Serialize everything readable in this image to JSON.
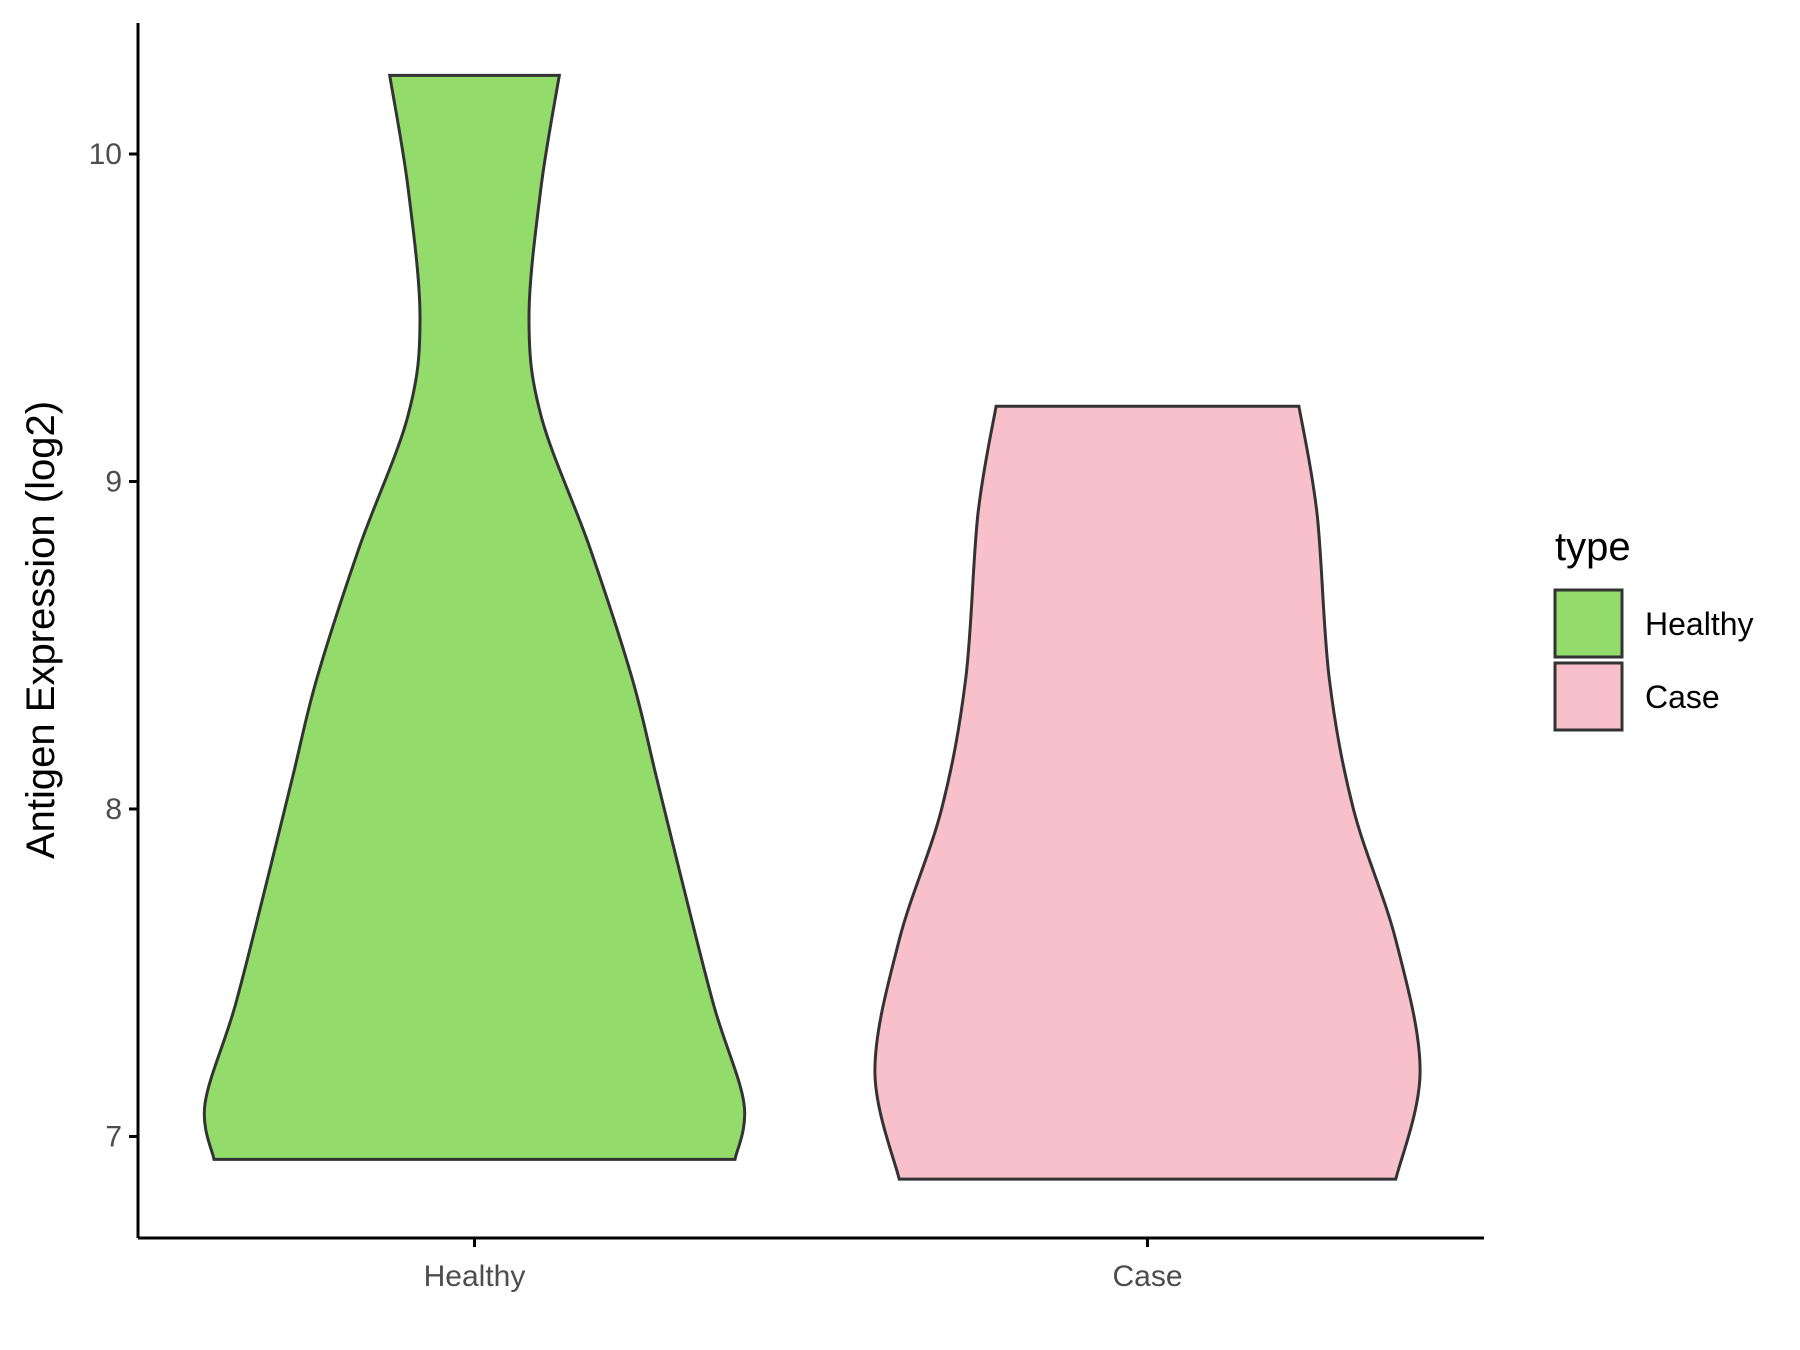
{
  "chart_data": {
    "type": "violin",
    "ylabel": "Antigen Expression (log2)",
    "xlabel": "",
    "ylim": [
      6.69,
      10.4
    ],
    "yticks": [
      7,
      8,
      9,
      10
    ],
    "categories": [
      "Healthy",
      "Case"
    ],
    "legend": {
      "title": "type",
      "position": "right",
      "entries": [
        {
          "label": "Healthy",
          "color": "#93DC6B"
        },
        {
          "label": "Case",
          "color": "#F8C0CB"
        }
      ]
    },
    "grid": false,
    "series": [
      {
        "category": "Healthy",
        "color": "#93DC6B",
        "min": 6.93,
        "max": 10.24,
        "density_profile": [
          {
            "y": 6.93,
            "w": 0.86
          },
          {
            "y": 7.1,
            "w": 0.89
          },
          {
            "y": 7.4,
            "w": 0.79
          },
          {
            "y": 7.8,
            "w": 0.68
          },
          {
            "y": 8.1,
            "w": 0.6
          },
          {
            "y": 8.4,
            "w": 0.52
          },
          {
            "y": 8.8,
            "w": 0.38
          },
          {
            "y": 9.2,
            "w": 0.22
          },
          {
            "y": 9.5,
            "w": 0.18
          },
          {
            "y": 9.9,
            "w": 0.22
          },
          {
            "y": 10.24,
            "w": 0.28
          }
        ]
      },
      {
        "category": "Case",
        "color": "#F8C0CB",
        "min": 6.87,
        "max": 9.23,
        "density_profile": [
          {
            "y": 6.87,
            "w": 0.82
          },
          {
            "y": 7.2,
            "w": 0.9
          },
          {
            "y": 7.6,
            "w": 0.82
          },
          {
            "y": 8.0,
            "w": 0.68
          },
          {
            "y": 8.4,
            "w": 0.6
          },
          {
            "y": 8.9,
            "w": 0.56
          },
          {
            "y": 9.23,
            "w": 0.5
          }
        ]
      }
    ]
  }
}
